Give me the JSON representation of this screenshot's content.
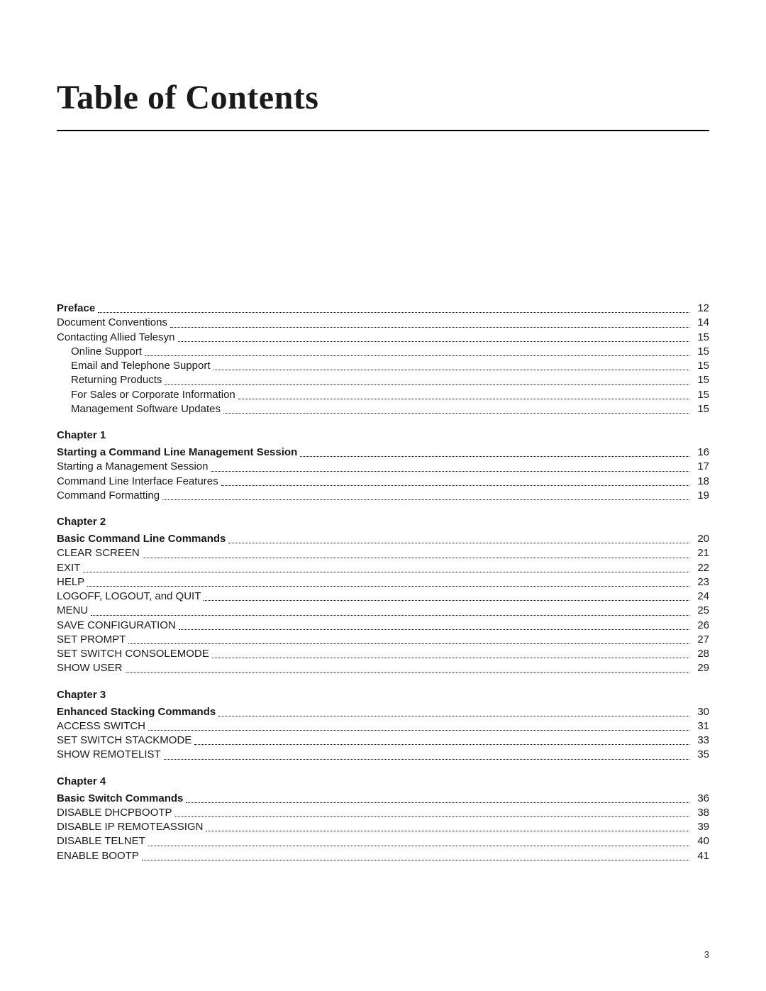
{
  "title": "Table of Contents",
  "footer_page_number": "3",
  "style": {
    "page_bg": "#ffffff",
    "text_color": "#1a1a1a",
    "title_font": "serif",
    "title_size_pt": 36,
    "body_size_pt": 11,
    "rule_color": "#000000",
    "leader_style": "dotted"
  },
  "sections": [
    {
      "heading": null,
      "entries": [
        {
          "label": "Preface",
          "page": "12",
          "bold": true,
          "indent": 0
        },
        {
          "label": "Document Conventions",
          "page": "14",
          "bold": false,
          "indent": 0
        },
        {
          "label": "Contacting Allied Telesyn",
          "page": "15",
          "bold": false,
          "indent": 0
        },
        {
          "label": "Online Support",
          "page": "15",
          "bold": false,
          "indent": 1
        },
        {
          "label": "Email and Telephone Support",
          "page": "15",
          "bold": false,
          "indent": 1
        },
        {
          "label": "Returning Products",
          "page": "15",
          "bold": false,
          "indent": 1
        },
        {
          "label": "For Sales or Corporate Information",
          "page": "15",
          "bold": false,
          "indent": 1
        },
        {
          "label": "Management Software Updates",
          "page": "15",
          "bold": false,
          "indent": 1
        }
      ]
    },
    {
      "heading": "Chapter 1",
      "entries": [
        {
          "label": "Starting a Command Line Management Session",
          "page": "16",
          "bold": true,
          "indent": 0
        },
        {
          "label": "Starting a Management Session",
          "page": "17",
          "bold": false,
          "indent": 0
        },
        {
          "label": "Command Line Interface Features",
          "page": "18",
          "bold": false,
          "indent": 0
        },
        {
          "label": "Command Formatting",
          "page": "19",
          "bold": false,
          "indent": 0
        }
      ]
    },
    {
      "heading": "Chapter 2",
      "entries": [
        {
          "label": "Basic Command Line Commands",
          "page": "20",
          "bold": true,
          "indent": 0
        },
        {
          "label": "CLEAR SCREEN",
          "page": "21",
          "bold": false,
          "indent": 0
        },
        {
          "label": "EXIT",
          "page": "22",
          "bold": false,
          "indent": 0
        },
        {
          "label": "HELP",
          "page": "23",
          "bold": false,
          "indent": 0
        },
        {
          "label": "LOGOFF, LOGOUT, and QUIT",
          "page": "24",
          "bold": false,
          "indent": 0
        },
        {
          "label": "MENU",
          "page": "25",
          "bold": false,
          "indent": 0
        },
        {
          "label": "SAVE CONFIGURATION",
          "page": "26",
          "bold": false,
          "indent": 0
        },
        {
          "label": "SET PROMPT",
          "page": "27",
          "bold": false,
          "indent": 0
        },
        {
          "label": "SET SWITCH CONSOLEMODE",
          "page": "28",
          "bold": false,
          "indent": 0
        },
        {
          "label": "SHOW USER",
          "page": "29",
          "bold": false,
          "indent": 0
        }
      ]
    },
    {
      "heading": "Chapter 3",
      "entries": [
        {
          "label": "Enhanced Stacking Commands",
          "page": "30",
          "bold": true,
          "indent": 0
        },
        {
          "label": "ACCESS SWITCH",
          "page": "31",
          "bold": false,
          "indent": 0
        },
        {
          "label": "SET SWITCH STACKMODE",
          "page": "33",
          "bold": false,
          "indent": 0
        },
        {
          "label": "SHOW REMOTELIST",
          "page": "35",
          "bold": false,
          "indent": 0
        }
      ]
    },
    {
      "heading": "Chapter 4",
      "entries": [
        {
          "label": "Basic Switch Commands",
          "page": "36",
          "bold": true,
          "indent": 0
        },
        {
          "label": "DISABLE DHCPBOOTP",
          "page": "38",
          "bold": false,
          "indent": 0
        },
        {
          "label": "DISABLE IP REMOTEASSIGN",
          "page": "39",
          "bold": false,
          "indent": 0
        },
        {
          "label": "DISABLE TELNET",
          "page": "40",
          "bold": false,
          "indent": 0
        },
        {
          "label": "ENABLE BOOTP",
          "page": "41",
          "bold": false,
          "indent": 0
        }
      ]
    }
  ]
}
